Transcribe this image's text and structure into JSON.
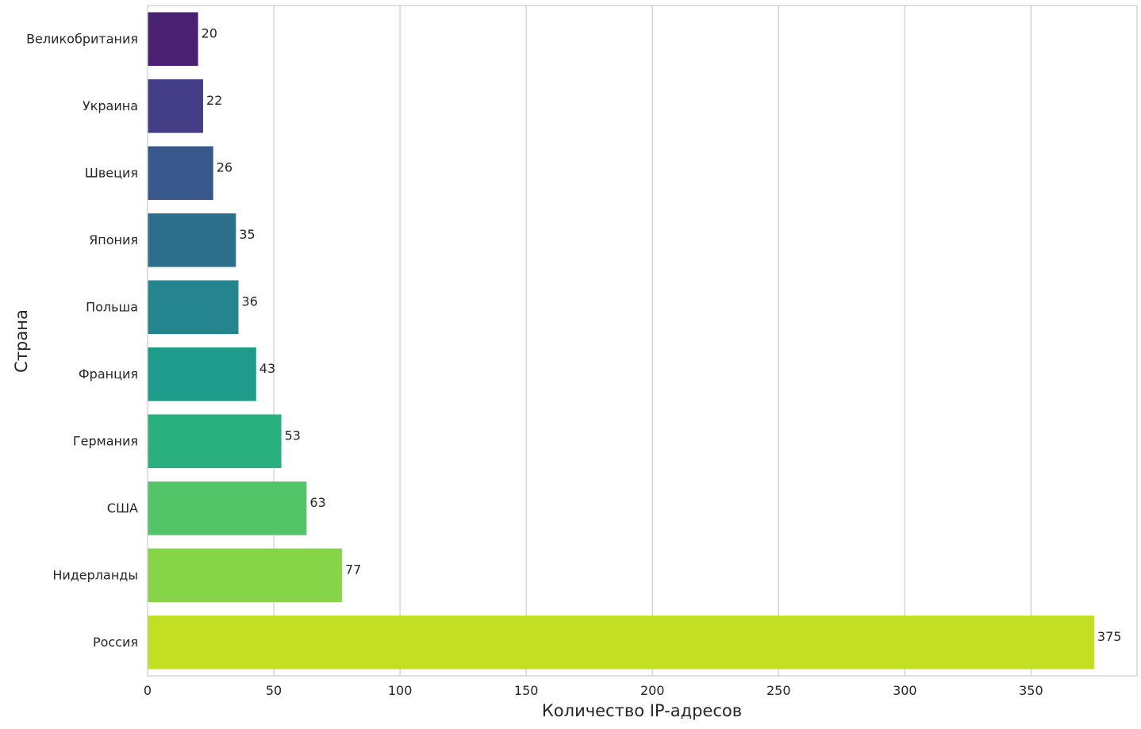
{
  "chart_data": {
    "type": "bar",
    "orientation": "horizontal",
    "title": "",
    "xlabel": "Количество IP-адресов",
    "ylabel": "Страна",
    "xlim": [
      0,
      392
    ],
    "xticks": [
      0,
      50,
      100,
      150,
      200,
      250,
      300,
      350
    ],
    "grid": true,
    "legend": "none",
    "categories": [
      "Великобритания",
      "Украина",
      "Швеция",
      "Япония",
      "Польша",
      "Франция",
      "Германия",
      "США",
      "Нидерланды",
      "Россия"
    ],
    "values": [
      20,
      22,
      26,
      35,
      36,
      43,
      53,
      63,
      77,
      375
    ],
    "colors": [
      "#482173",
      "#433e85",
      "#38588c",
      "#2d708e",
      "#25858e",
      "#1e9b8a",
      "#2ab07f",
      "#52c569",
      "#86d549",
      "#c2df23"
    ]
  }
}
